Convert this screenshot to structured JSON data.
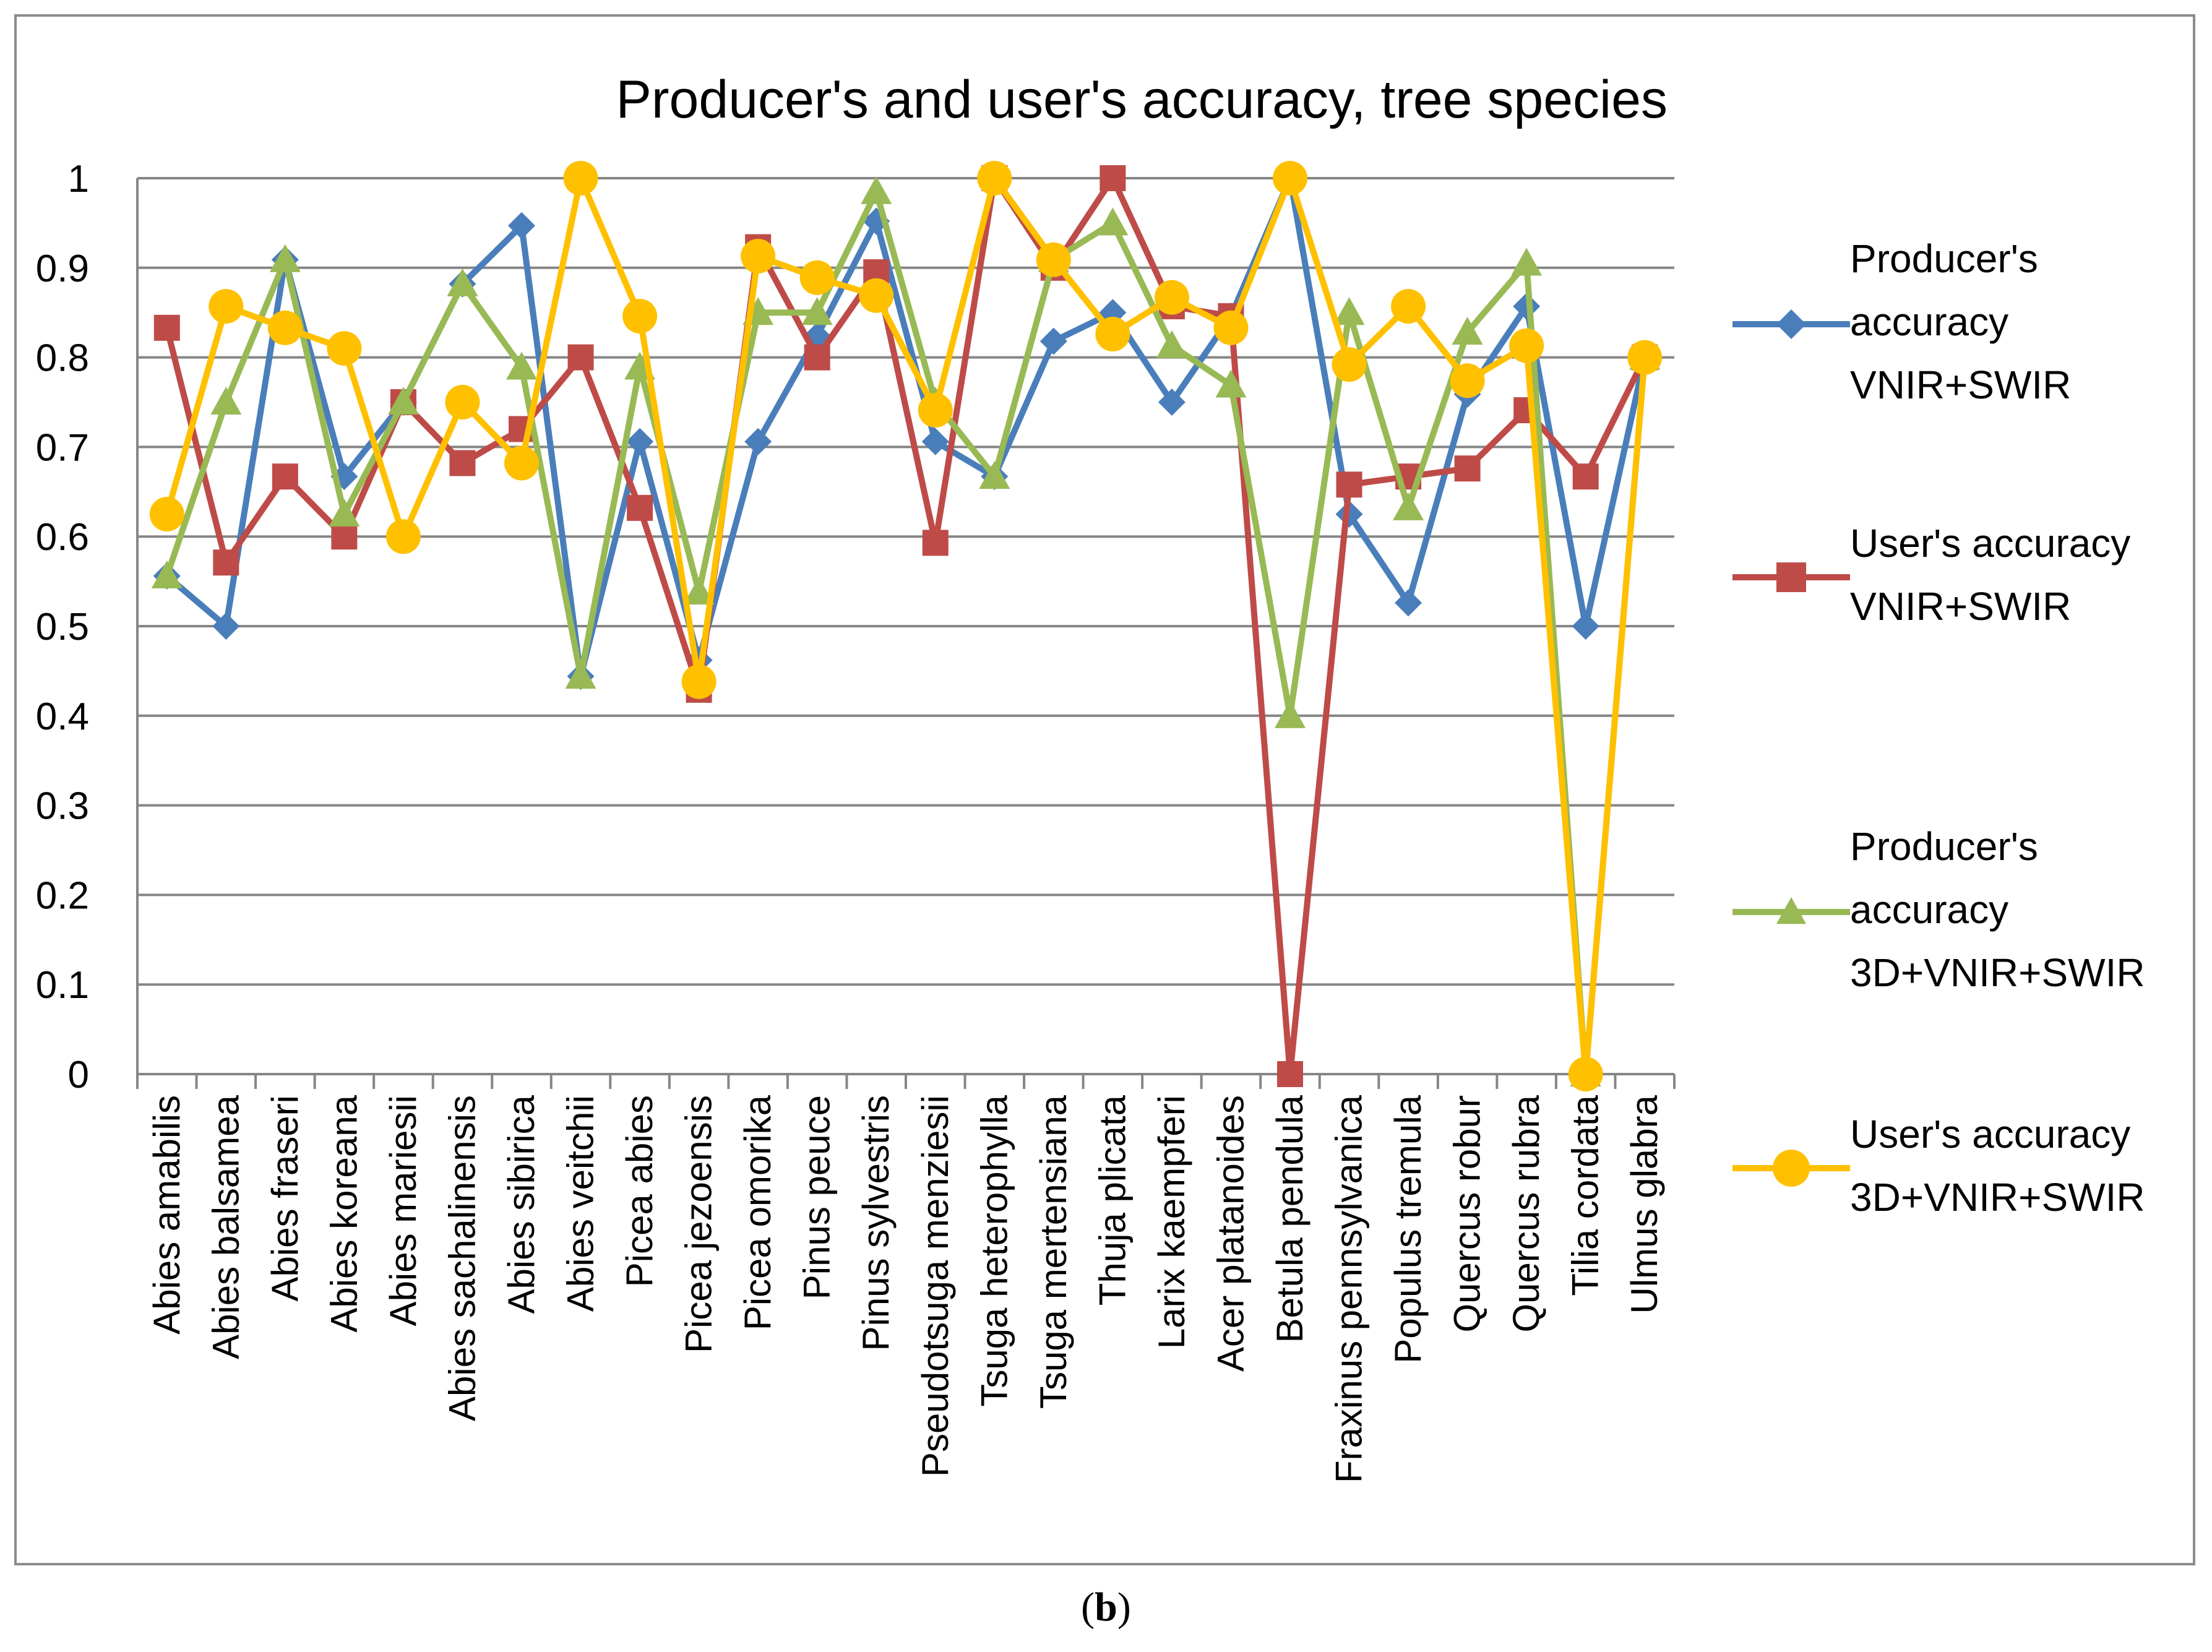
{
  "chart_data": {
    "type": "line",
    "title": "Producer's and user's accuracy, tree species",
    "xlabel": "",
    "ylabel": "",
    "ylim": [
      0,
      1
    ],
    "yticks": [
      "0",
      "0.1",
      "0.2",
      "0.3",
      "0.4",
      "0.5",
      "0.6",
      "0.7",
      "0.8",
      "0.9",
      "1"
    ],
    "ytick_values": [
      0,
      0.1,
      0.2,
      0.3,
      0.4,
      0.5,
      0.6,
      0.7,
      0.8,
      0.9,
      1
    ],
    "grid": true,
    "legend_position": "right",
    "categories": [
      "Abies amabilis",
      "Abies balsamea",
      "Abies fraseri",
      "Abies koreana",
      "Abies mariesii",
      "Abies sachalinensis",
      "Abies sibirica",
      "Abies veitchii",
      "Picea abies",
      "Picea jezoensis",
      "Picea omorika",
      "Pinus peuce",
      "Pinus sylvestris",
      "Pseudotsuga menziesii",
      "Tsuga heterophylla",
      "Tsuga mertensiana",
      "Thuja plicata",
      "Larix kaempferi",
      "Acer platanoides",
      "Betula pendula",
      "Fraxinus pennsylvanica",
      "Populus tremula",
      "Quercus robur",
      "Quercus rubra",
      "Tilia cordata",
      "Ulmus glabra"
    ],
    "series": [
      {
        "name": "Producer's accuracy VNIR+SWIR",
        "legend_lines": [
          "Producer's",
          "accuracy",
          "VNIR+SWIR"
        ],
        "color": "#4a7ebb",
        "marker": "diamond",
        "values": [
          0.556,
          0.5,
          0.909,
          0.667,
          0.75,
          0.882,
          0.947,
          0.444,
          0.706,
          0.462,
          0.706,
          0.824,
          0.952,
          0.706,
          0.667,
          0.818,
          0.85,
          0.75,
          0.846,
          1.0,
          0.625,
          0.526,
          0.759,
          0.857,
          0.5,
          0.8
        ]
      },
      {
        "name": "User's accuracy VNIR+SWIR",
        "legend_lines": [
          "User's accuracy",
          "VNIR+SWIR"
        ],
        "color": "#be4b48",
        "marker": "square",
        "values": [
          0.833,
          0.571,
          0.667,
          0.6,
          0.75,
          0.682,
          0.72,
          0.8,
          0.632,
          0.429,
          0.923,
          0.8,
          0.895,
          0.593,
          1.0,
          0.9,
          1.0,
          0.857,
          0.846,
          0.0,
          0.658,
          0.667,
          0.676,
          0.741,
          0.667,
          0.8
        ]
      },
      {
        "name": "Producer's accuracy 3D+VNIR+SWIR",
        "legend_lines": [
          "Producer's",
          "accuracy",
          "3D+VNIR+SWIR"
        ],
        "color": "#98b954",
        "marker": "triangle",
        "values": [
          0.556,
          0.75,
          0.909,
          0.625,
          0.75,
          0.882,
          0.789,
          0.444,
          0.789,
          0.538,
          0.85,
          0.85,
          0.985,
          0.75,
          0.667,
          0.909,
          0.95,
          0.813,
          0.769,
          0.4,
          0.85,
          0.632,
          0.828,
          0.905,
          0.0,
          0.8
        ]
      },
      {
        "name": "User's accuracy 3D+VNIR+SWIR",
        "legend_lines": [
          "User's accuracy",
          "3D+VNIR+SWIR"
        ],
        "color": "#ffc000",
        "marker": "circle",
        "values": [
          0.625,
          0.857,
          0.833,
          0.81,
          0.6,
          0.75,
          0.682,
          1.0,
          0.846,
          0.438,
          0.913,
          0.889,
          0.869,
          0.741,
          1.0,
          0.909,
          0.826,
          0.867,
          0.833,
          1.0,
          0.792,
          0.857,
          0.774,
          0.813,
          0.0,
          0.8
        ]
      }
    ]
  },
  "caption": {
    "open": "(",
    "label": "b",
    "close": ")"
  }
}
